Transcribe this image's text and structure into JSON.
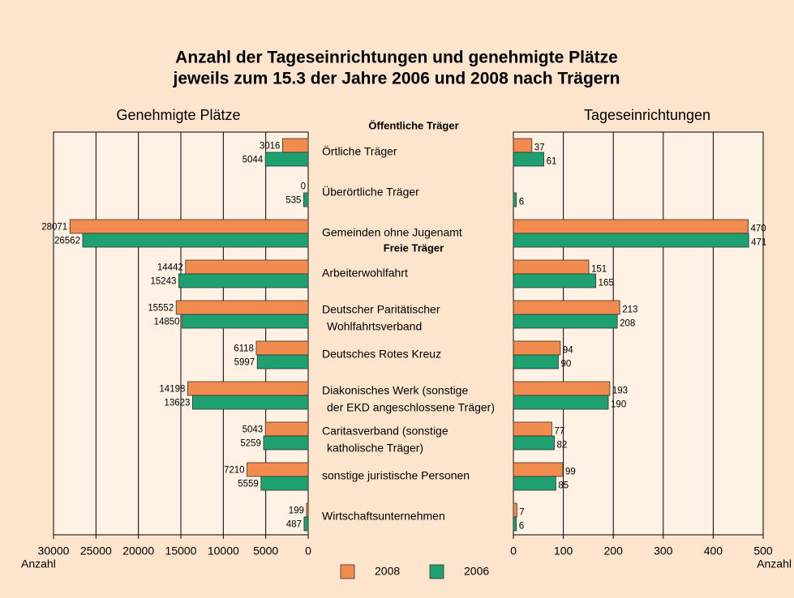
{
  "title": [
    "Anzahl der Tageseinrichtungen und genehmigte Plätze",
    "jeweils zum 15.3 der Jahre 2006 und 2008 nach Trägern"
  ],
  "groups": [
    {
      "name": "Öffentliche Träger",
      "categories": [
        "Örtliche Träger",
        "Überörtliche Träger",
        "Gemeinden ohne Jugenamt"
      ]
    },
    {
      "name": "Freie Träger",
      "categories": [
        "Arbeiterwohlfahrt",
        [
          "Deutscher Paritätischer",
          "Wohlfahrtsverband"
        ],
        "Deutsches Rotes Kreuz",
        [
          "Diakonisches Werk (sonstige",
          "der EKD angeschlossene Träger)"
        ],
        [
          "Caritasverband (sonstige",
          "katholische Träger)"
        ],
        "sonstige juristische Personen",
        "Wirtschaftsunternehmen"
      ]
    }
  ],
  "chart_data": [
    {
      "type": "bar",
      "orientation": "horizontal",
      "reversed": true,
      "title": "Genehmigte Plätze",
      "x_label": "Anzahl",
      "xlim": [
        0,
        30000
      ],
      "xticks": [
        0,
        5000,
        10000,
        15000,
        20000,
        25000,
        30000
      ],
      "grid": true,
      "series": [
        {
          "name": "2008",
          "color": "#f28c4e",
          "values": [
            3016,
            0,
            28071,
            14442,
            15552,
            6118,
            14198,
            5043,
            7210,
            199
          ]
        },
        {
          "name": "2006",
          "color": "#1fa070",
          "values": [
            5044,
            535,
            26562,
            15243,
            14850,
            5997,
            13623,
            5259,
            5559,
            487
          ]
        }
      ]
    },
    {
      "type": "bar",
      "orientation": "horizontal",
      "reversed": false,
      "title": "Tageseinrichtungen",
      "x_label": "Anzahl",
      "xlim": [
        0,
        500
      ],
      "xticks": [
        0,
        100,
        200,
        300,
        400,
        500
      ],
      "grid": true,
      "series": [
        {
          "color": "#f28c4e",
          "values": [
            37,
            null,
            470,
            151,
            213,
            94,
            193,
            77,
            99,
            7
          ]
        },
        {
          "color": "#1fa070",
          "values": [
            61,
            6,
            471,
            165,
            208,
            90,
            190,
            82,
            85,
            6
          ]
        }
      ]
    }
  ]
}
